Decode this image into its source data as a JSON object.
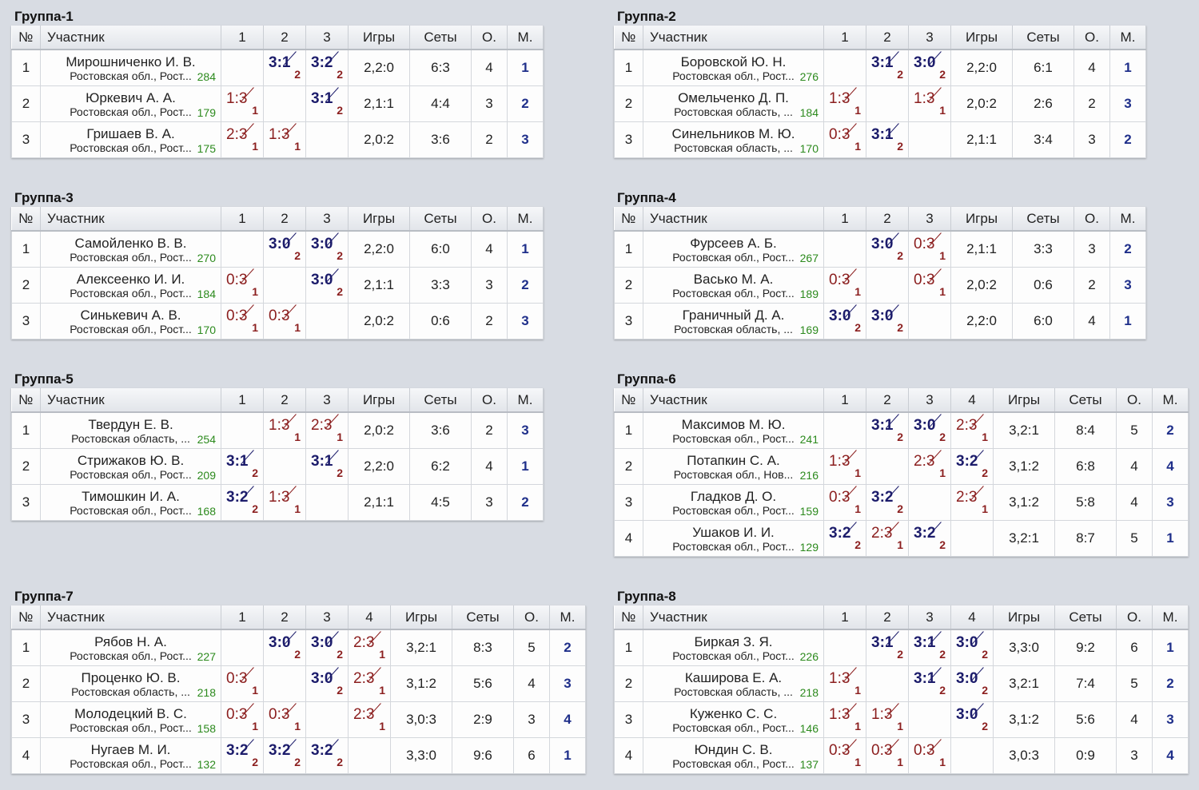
{
  "groups": [
    {
      "title": "Группа-1",
      "headers": {
        "num": "№",
        "participant": "Участник",
        "games": "Игры",
        "sets": "Сеты",
        "points": "О.",
        "place": "М.",
        "cols": [
          "1",
          "2",
          "3"
        ]
      },
      "rows": [
        {
          "num": "1",
          "name": "Мирошниченко И. В.",
          "region": "Ростовская обл., Рост...",
          "rating": "284",
          "results": [
            null,
            {
              "score": "3:1",
              "pts": "2",
              "win": true
            },
            {
              "score": "3:2",
              "pts": "2",
              "win": true
            }
          ],
          "games": "2,2:0",
          "sets": "6:3",
          "points": "4",
          "place": "1"
        },
        {
          "num": "2",
          "name": "Юркевич А. А.",
          "region": "Ростовская обл., Рост...",
          "rating": "179",
          "results": [
            {
              "score": "1:3",
              "pts": "1",
              "win": false
            },
            null,
            {
              "score": "3:1",
              "pts": "2",
              "win": true
            }
          ],
          "games": "2,1:1",
          "sets": "4:4",
          "points": "3",
          "place": "2"
        },
        {
          "num": "3",
          "name": "Гришаев В. А.",
          "region": "Ростовская обл., Рост...",
          "rating": "175",
          "results": [
            {
              "score": "2:3",
              "pts": "1",
              "win": false
            },
            {
              "score": "1:3",
              "pts": "1",
              "win": false
            },
            null
          ],
          "games": "2,0:2",
          "sets": "3:6",
          "points": "2",
          "place": "3"
        }
      ]
    },
    {
      "title": "Группа-2",
      "headers": {
        "num": "№",
        "participant": "Участник",
        "games": "Игры",
        "sets": "Сеты",
        "points": "О.",
        "place": "М.",
        "cols": [
          "1",
          "2",
          "3"
        ]
      },
      "rows": [
        {
          "num": "1",
          "name": "Боровской Ю. Н.",
          "region": "Ростовская обл., Рост...",
          "rating": "276",
          "results": [
            null,
            {
              "score": "3:1",
              "pts": "2",
              "win": true
            },
            {
              "score": "3:0",
              "pts": "2",
              "win": true
            }
          ],
          "games": "2,2:0",
          "sets": "6:1",
          "points": "4",
          "place": "1"
        },
        {
          "num": "2",
          "name": "Омельченко Д. П.",
          "region": "Ростовская область, ...",
          "rating": "184",
          "results": [
            {
              "score": "1:3",
              "pts": "1",
              "win": false
            },
            null,
            {
              "score": "1:3",
              "pts": "1",
              "win": false
            }
          ],
          "games": "2,0:2",
          "sets": "2:6",
          "points": "2",
          "place": "3"
        },
        {
          "num": "3",
          "name": "Синельников М. Ю.",
          "region": "Ростовская область, ...",
          "rating": "170",
          "results": [
            {
              "score": "0:3",
              "pts": "1",
              "win": false
            },
            {
              "score": "3:1",
              "pts": "2",
              "win": true
            },
            null
          ],
          "games": "2,1:1",
          "sets": "3:4",
          "points": "3",
          "place": "2"
        }
      ]
    },
    {
      "title": "Группа-3",
      "headers": {
        "num": "№",
        "participant": "Участник",
        "games": "Игры",
        "sets": "Сеты",
        "points": "О.",
        "place": "М.",
        "cols": [
          "1",
          "2",
          "3"
        ]
      },
      "rows": [
        {
          "num": "1",
          "name": "Самойленко В. В.",
          "region": "Ростовская обл., Рост...",
          "rating": "270",
          "results": [
            null,
            {
              "score": "3:0",
              "pts": "2",
              "win": true
            },
            {
              "score": "3:0",
              "pts": "2",
              "win": true
            }
          ],
          "games": "2,2:0",
          "sets": "6:0",
          "points": "4",
          "place": "1"
        },
        {
          "num": "2",
          "name": "Алексеенко И. И.",
          "region": "Ростовская обл., Рост...",
          "rating": "184",
          "results": [
            {
              "score": "0:3",
              "pts": "1",
              "win": false
            },
            null,
            {
              "score": "3:0",
              "pts": "2",
              "win": true
            }
          ],
          "games": "2,1:1",
          "sets": "3:3",
          "points": "3",
          "place": "2"
        },
        {
          "num": "3",
          "name": "Синькевич А. В.",
          "region": "Ростовская обл., Рост...",
          "rating": "170",
          "results": [
            {
              "score": "0:3",
              "pts": "1",
              "win": false
            },
            {
              "score": "0:3",
              "pts": "1",
              "win": false
            },
            null
          ],
          "games": "2,0:2",
          "sets": "0:6",
          "points": "2",
          "place": "3"
        }
      ]
    },
    {
      "title": "Группа-4",
      "headers": {
        "num": "№",
        "participant": "Участник",
        "games": "Игры",
        "sets": "Сеты",
        "points": "О.",
        "place": "М.",
        "cols": [
          "1",
          "2",
          "3"
        ]
      },
      "rows": [
        {
          "num": "1",
          "name": "Фурсеев А. Б.",
          "region": "Ростовская обл., Рост...",
          "rating": "267",
          "results": [
            null,
            {
              "score": "3:0",
              "pts": "2",
              "win": true
            },
            {
              "score": "0:3",
              "pts": "1",
              "win": false
            }
          ],
          "games": "2,1:1",
          "sets": "3:3",
          "points": "3",
          "place": "2"
        },
        {
          "num": "2",
          "name": "Васько М. А.",
          "region": "Ростовская обл., Рост...",
          "rating": "189",
          "results": [
            {
              "score": "0:3",
              "pts": "1",
              "win": false
            },
            null,
            {
              "score": "0:3",
              "pts": "1",
              "win": false
            }
          ],
          "games": "2,0:2",
          "sets": "0:6",
          "points": "2",
          "place": "3"
        },
        {
          "num": "3",
          "name": "Граничный Д. А.",
          "region": "Ростовская область, ...",
          "rating": "169",
          "results": [
            {
              "score": "3:0",
              "pts": "2",
              "win": true
            },
            {
              "score": "3:0",
              "pts": "2",
              "win": true
            },
            null
          ],
          "games": "2,2:0",
          "sets": "6:0",
          "points": "4",
          "place": "1"
        }
      ]
    },
    {
      "title": "Группа-5",
      "headers": {
        "num": "№",
        "participant": "Участник",
        "games": "Игры",
        "sets": "Сеты",
        "points": "О.",
        "place": "М.",
        "cols": [
          "1",
          "2",
          "3"
        ]
      },
      "rows": [
        {
          "num": "1",
          "name": "Твердун Е. В.",
          "region": "Ростовская область, ...",
          "rating": "254",
          "results": [
            null,
            {
              "score": "1:3",
              "pts": "1",
              "win": false
            },
            {
              "score": "2:3",
              "pts": "1",
              "win": false
            }
          ],
          "games": "2,0:2",
          "sets": "3:6",
          "points": "2",
          "place": "3"
        },
        {
          "num": "2",
          "name": "Стрижаков Ю. В.",
          "region": "Ростовская обл., Рост...",
          "rating": "209",
          "results": [
            {
              "score": "3:1",
              "pts": "2",
              "win": true
            },
            null,
            {
              "score": "3:1",
              "pts": "2",
              "win": true
            }
          ],
          "games": "2,2:0",
          "sets": "6:2",
          "points": "4",
          "place": "1"
        },
        {
          "num": "3",
          "name": "Тимошкин И. А.",
          "region": "Ростовская обл., Рост...",
          "rating": "168",
          "results": [
            {
              "score": "3:2",
              "pts": "2",
              "win": true
            },
            {
              "score": "1:3",
              "pts": "1",
              "win": false
            },
            null
          ],
          "games": "2,1:1",
          "sets": "4:5",
          "points": "3",
          "place": "2"
        }
      ]
    },
    {
      "title": "Группа-6",
      "headers": {
        "num": "№",
        "participant": "Участник",
        "games": "Игры",
        "sets": "Сеты",
        "points": "О.",
        "place": "М.",
        "cols": [
          "1",
          "2",
          "3",
          "4"
        ]
      },
      "rows": [
        {
          "num": "1",
          "name": "Максимов М. Ю.",
          "region": "Ростовская обл., Рост...",
          "rating": "241",
          "results": [
            null,
            {
              "score": "3:1",
              "pts": "2",
              "win": true
            },
            {
              "score": "3:0",
              "pts": "2",
              "win": true
            },
            {
              "score": "2:3",
              "pts": "1",
              "win": false
            }
          ],
          "games": "3,2:1",
          "sets": "8:4",
          "points": "5",
          "place": "2"
        },
        {
          "num": "2",
          "name": "Потапкин С. А.",
          "region": "Ростовская обл., Нов...",
          "rating": "216",
          "results": [
            {
              "score": "1:3",
              "pts": "1",
              "win": false
            },
            null,
            {
              "score": "2:3",
              "pts": "1",
              "win": false
            },
            {
              "score": "3:2",
              "pts": "2",
              "win": true
            }
          ],
          "games": "3,1:2",
          "sets": "6:8",
          "points": "4",
          "place": "4"
        },
        {
          "num": "3",
          "name": "Гладков Д. О.",
          "region": "Ростовская обл., Рост...",
          "rating": "159",
          "results": [
            {
              "score": "0:3",
              "pts": "1",
              "win": false
            },
            {
              "score": "3:2",
              "pts": "2",
              "win": true
            },
            null,
            {
              "score": "2:3",
              "pts": "1",
              "win": false
            }
          ],
          "games": "3,1:2",
          "sets": "5:8",
          "points": "4",
          "place": "3"
        },
        {
          "num": "4",
          "name": "Ушаков И. И.",
          "region": "Ростовская обл., Рост...",
          "rating": "129",
          "results": [
            {
              "score": "3:2",
              "pts": "2",
              "win": true
            },
            {
              "score": "2:3",
              "pts": "1",
              "win": false
            },
            {
              "score": "3:2",
              "pts": "2",
              "win": true
            },
            null
          ],
          "games": "3,2:1",
          "sets": "8:7",
          "points": "5",
          "place": "1"
        }
      ]
    },
    {
      "title": "Группа-7",
      "headers": {
        "num": "№",
        "participant": "Участник",
        "games": "Игры",
        "sets": "Сеты",
        "points": "О.",
        "place": "М.",
        "cols": [
          "1",
          "2",
          "3",
          "4"
        ]
      },
      "rows": [
        {
          "num": "1",
          "name": "Рябов Н. А.",
          "region": "Ростовская обл., Рост...",
          "rating": "227",
          "results": [
            null,
            {
              "score": "3:0",
              "pts": "2",
              "win": true
            },
            {
              "score": "3:0",
              "pts": "2",
              "win": true
            },
            {
              "score": "2:3",
              "pts": "1",
              "win": false
            }
          ],
          "games": "3,2:1",
          "sets": "8:3",
          "points": "5",
          "place": "2"
        },
        {
          "num": "2",
          "name": "Проценко Ю. В.",
          "region": "Ростовская область, ...",
          "rating": "218",
          "results": [
            {
              "score": "0:3",
              "pts": "1",
              "win": false
            },
            null,
            {
              "score": "3:0",
              "pts": "2",
              "win": true
            },
            {
              "score": "2:3",
              "pts": "1",
              "win": false
            }
          ],
          "games": "3,1:2",
          "sets": "5:6",
          "points": "4",
          "place": "3"
        },
        {
          "num": "3",
          "name": "Молодецкий В. С.",
          "region": "Ростовская обл., Рост...",
          "rating": "158",
          "results": [
            {
              "score": "0:3",
              "pts": "1",
              "win": false
            },
            {
              "score": "0:3",
              "pts": "1",
              "win": false
            },
            null,
            {
              "score": "2:3",
              "pts": "1",
              "win": false
            }
          ],
          "games": "3,0:3",
          "sets": "2:9",
          "points": "3",
          "place": "4"
        },
        {
          "num": "4",
          "name": "Нугаев М. И.",
          "region": "Ростовская обл., Рост...",
          "rating": "132",
          "results": [
            {
              "score": "3:2",
              "pts": "2",
              "win": true
            },
            {
              "score": "3:2",
              "pts": "2",
              "win": true
            },
            {
              "score": "3:2",
              "pts": "2",
              "win": true
            },
            null
          ],
          "games": "3,3:0",
          "sets": "9:6",
          "points": "6",
          "place": "1"
        }
      ]
    },
    {
      "title": "Группа-8",
      "headers": {
        "num": "№",
        "participant": "Участник",
        "games": "Игры",
        "sets": "Сеты",
        "points": "О.",
        "place": "М.",
        "cols": [
          "1",
          "2",
          "3",
          "4"
        ]
      },
      "rows": [
        {
          "num": "1",
          "name": "Биркая З. Я.",
          "region": "Ростовская обл., Рост...",
          "rating": "226",
          "results": [
            null,
            {
              "score": "3:1",
              "pts": "2",
              "win": true
            },
            {
              "score": "3:1",
              "pts": "2",
              "win": true
            },
            {
              "score": "3:0",
              "pts": "2",
              "win": true
            }
          ],
          "games": "3,3:0",
          "sets": "9:2",
          "points": "6",
          "place": "1"
        },
        {
          "num": "2",
          "name": "Каширова Е. А.",
          "region": "Ростовская область, ...",
          "rating": "218",
          "results": [
            {
              "score": "1:3",
              "pts": "1",
              "win": false
            },
            null,
            {
              "score": "3:1",
              "pts": "2",
              "win": true
            },
            {
              "score": "3:0",
              "pts": "2",
              "win": true
            }
          ],
          "games": "3,2:1",
          "sets": "7:4",
          "points": "5",
          "place": "2"
        },
        {
          "num": "3",
          "name": "Куженко С. С.",
          "region": "Ростовская обл., Рост...",
          "rating": "146",
          "results": [
            {
              "score": "1:3",
              "pts": "1",
              "win": false
            },
            {
              "score": "1:3",
              "pts": "1",
              "win": false
            },
            null,
            {
              "score": "3:0",
              "pts": "2",
              "win": true
            }
          ],
          "games": "3,1:2",
          "sets": "5:6",
          "points": "4",
          "place": "3"
        },
        {
          "num": "4",
          "name": "Юндин С. В.",
          "region": "Ростовская обл., Рост...",
          "rating": "137",
          "results": [
            {
              "score": "0:3",
              "pts": "1",
              "win": false
            },
            {
              "score": "0:3",
              "pts": "1",
              "win": false
            },
            {
              "score": "0:3",
              "pts": "1",
              "win": false
            },
            null
          ],
          "games": "3,0:3",
          "sets": "0:9",
          "points": "3",
          "place": "4"
        }
      ]
    }
  ]
}
